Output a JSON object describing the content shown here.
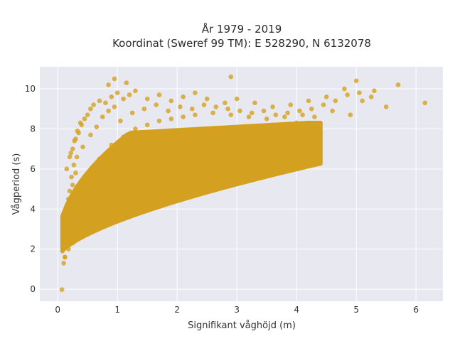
{
  "chart_data": {
    "type": "scatter",
    "title_lines": [
      "År 1979 - 2019",
      "Koordinat (Sweref 99 TM): E 528290, N 6132078"
    ],
    "xlabel": "Signifikant våghöjd (m)",
    "ylabel": "Vågperiod (s)",
    "xlim": [
      -0.3,
      6.45
    ],
    "ylim": [
      -0.6,
      11.1
    ],
    "xticks": [
      "0",
      "1",
      "2",
      "3",
      "4",
      "5",
      "6"
    ],
    "yticks": [
      "0",
      "2",
      "4",
      "6",
      "8",
      "10"
    ],
    "grid": true,
    "legend": "none",
    "marker_color": "#d4a020",
    "plot_background": "#e8e8f0",
    "series": [
      {
        "points": [
          [
            0.07,
            -0.02
          ],
          [
            0.1,
            1.3
          ],
          [
            0.12,
            1.6
          ],
          [
            0.08,
            1.9
          ],
          [
            0.15,
            2.4
          ],
          [
            0.2,
            3.0
          ],
          [
            0.12,
            3.8
          ],
          [
            0.18,
            4.5
          ],
          [
            0.25,
            5.2
          ],
          [
            0.3,
            5.8
          ],
          [
            0.15,
            6.0
          ],
          [
            0.2,
            6.6
          ],
          [
            0.25,
            7.0
          ],
          [
            0.3,
            7.5
          ],
          [
            0.35,
            7.8
          ],
          [
            0.4,
            8.2
          ],
          [
            0.45,
            8.5
          ],
          [
            0.5,
            8.7
          ],
          [
            0.55,
            9.0
          ],
          [
            0.6,
            9.2
          ],
          [
            0.7,
            9.4
          ],
          [
            0.8,
            9.3
          ],
          [
            0.9,
            9.6
          ],
          [
            1.0,
            9.8
          ],
          [
            1.1,
            9.5
          ],
          [
            1.2,
            9.7
          ],
          [
            1.3,
            9.9
          ],
          [
            1.5,
            9.5
          ],
          [
            1.7,
            9.7
          ],
          [
            1.9,
            9.4
          ],
          [
            2.1,
            9.6
          ],
          [
            2.3,
            9.8
          ],
          [
            2.5,
            9.5
          ],
          [
            2.8,
            9.3
          ],
          [
            3.0,
            9.5
          ],
          [
            3.3,
            9.3
          ],
          [
            3.6,
            9.1
          ],
          [
            3.9,
            9.2
          ],
          [
            4.2,
            9.4
          ],
          [
            4.5,
            9.6
          ],
          [
            4.8,
            10.0
          ],
          [
            5.0,
            10.4
          ],
          [
            5.3,
            9.9
          ],
          [
            5.7,
            10.2
          ],
          [
            6.15,
            9.3
          ],
          [
            5.5,
            9.1
          ],
          [
            5.1,
            9.4
          ],
          [
            4.9,
            8.7
          ],
          [
            4.6,
            8.9
          ],
          [
            4.3,
            8.6
          ],
          [
            4.0,
            8.3
          ],
          [
            3.7,
            8.0
          ],
          [
            3.4,
            7.8
          ],
          [
            3.1,
            7.5
          ],
          [
            2.8,
            7.2
          ],
          [
            2.5,
            6.8
          ],
          [
            2.2,
            6.5
          ],
          [
            2.0,
            6.1
          ],
          [
            1.8,
            5.8
          ],
          [
            1.6,
            5.5
          ],
          [
            1.4,
            5.1
          ],
          [
            1.2,
            4.7
          ],
          [
            1.0,
            4.3
          ],
          [
            0.8,
            3.9
          ],
          [
            0.6,
            3.4
          ],
          [
            0.45,
            3.0
          ],
          [
            0.35,
            2.7
          ],
          [
            0.25,
            2.3
          ],
          [
            0.18,
            2.0
          ],
          [
            0.12,
            1.6
          ],
          [
            0.85,
            10.2
          ],
          [
            0.95,
            10.5
          ],
          [
            1.15,
            10.3
          ],
          [
            2.9,
            10.6
          ],
          [
            0.5,
            5.5
          ],
          [
            0.7,
            6.5
          ],
          [
            0.9,
            7.2
          ],
          [
            1.1,
            7.6
          ],
          [
            1.3,
            8.0
          ],
          [
            1.5,
            8.2
          ],
          [
            1.7,
            8.4
          ],
          [
            1.9,
            8.5
          ],
          [
            2.1,
            8.6
          ],
          [
            2.3,
            8.7
          ],
          [
            2.6,
            8.8
          ],
          [
            2.9,
            8.7
          ],
          [
            3.2,
            8.6
          ],
          [
            3.5,
            8.5
          ],
          [
            3.8,
            8.6
          ],
          [
            4.1,
            8.7
          ],
          [
            0.4,
            4.5
          ],
          [
            0.6,
            5.0
          ],
          [
            0.8,
            5.6
          ],
          [
            1.0,
            6.0
          ],
          [
            1.2,
            6.3
          ],
          [
            1.5,
            6.7
          ],
          [
            1.8,
            7.0
          ],
          [
            2.1,
            7.2
          ],
          [
            2.4,
            7.4
          ],
          [
            2.7,
            7.6
          ],
          [
            3.0,
            7.8
          ],
          [
            3.3,
            8.0
          ],
          [
            3.6,
            8.2
          ],
          [
            0.3,
            3.5
          ],
          [
            0.5,
            4.0
          ],
          [
            0.7,
            4.6
          ],
          [
            0.9,
            5.1
          ],
          [
            1.1,
            5.5
          ],
          [
            1.3,
            5.9
          ],
          [
            1.6,
            6.2
          ],
          [
            0.22,
            6.8
          ],
          [
            0.28,
            7.4
          ],
          [
            0.33,
            7.9
          ],
          [
            0.38,
            8.3
          ],
          [
            0.42,
            7.1
          ],
          [
            0.55,
            7.7
          ],
          [
            0.65,
            8.1
          ],
          [
            0.75,
            8.6
          ],
          [
            0.85,
            8.9
          ],
          [
            0.95,
            9.1
          ],
          [
            1.05,
            8.4
          ],
          [
            1.25,
            8.8
          ],
          [
            1.45,
            9.0
          ],
          [
            1.65,
            9.2
          ],
          [
            1.85,
            8.9
          ],
          [
            2.05,
            9.1
          ],
          [
            2.25,
            9.0
          ],
          [
            2.45,
            9.2
          ],
          [
            2.65,
            9.1
          ],
          [
            2.85,
            9.0
          ],
          [
            3.05,
            8.9
          ],
          [
            3.25,
            8.8
          ],
          [
            3.45,
            8.9
          ],
          [
            3.65,
            8.7
          ],
          [
            3.85,
            8.8
          ],
          [
            4.05,
            8.9
          ],
          [
            4.25,
            9.0
          ],
          [
            4.45,
            9.2
          ],
          [
            4.65,
            9.4
          ],
          [
            4.85,
            9.7
          ],
          [
            5.05,
            9.8
          ],
          [
            5.25,
            9.6
          ],
          [
            0.1,
            2.6
          ],
          [
            0.14,
            3.2
          ],
          [
            0.16,
            4.1
          ],
          [
            0.2,
            4.9
          ],
          [
            0.23,
            5.6
          ],
          [
            0.27,
            6.2
          ],
          [
            0.32,
            6.6
          ],
          [
            0.37,
            5.0
          ]
        ]
      }
    ]
  }
}
